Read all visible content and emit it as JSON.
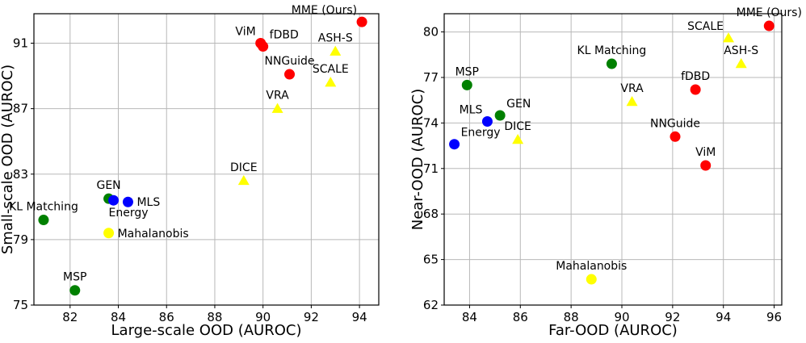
{
  "chart_data": [
    {
      "type": "scatter",
      "xlabel": "Large-scale OOD (AUROC)",
      "ylabel": "Small-scale OOD (AUROC)",
      "xlim": [
        80.5,
        94.8
      ],
      "ylim": [
        75,
        92.8
      ],
      "xticks": [
        "82",
        "84",
        "86",
        "88",
        "90",
        "92",
        "94"
      ],
      "yticks": [
        "75",
        "79",
        "83",
        "87",
        "91"
      ],
      "grid": true,
      "points": [
        {
          "label": "MME (Ours)",
          "x": 94.1,
          "y": 92.3,
          "marker": "circle",
          "color": "#ff0000",
          "label_pos": "above-left"
        },
        {
          "label": "ViM",
          "x": 89.9,
          "y": 91.0,
          "marker": "circle",
          "color": "#ff0000",
          "label_pos": "above-left"
        },
        {
          "label": "fDBD",
          "x": 90.0,
          "y": 90.8,
          "marker": "circle",
          "color": "#ff0000",
          "label_pos": "above-right"
        },
        {
          "label": "NNGuide",
          "x": 91.1,
          "y": 89.1,
          "marker": "circle",
          "color": "#ff0000",
          "label_pos": "above"
        },
        {
          "label": "ASH-S",
          "x": 93.0,
          "y": 90.5,
          "marker": "triangle",
          "color": "#ffff00",
          "label_pos": "above"
        },
        {
          "label": "SCALE",
          "x": 92.8,
          "y": 88.6,
          "marker": "triangle",
          "color": "#ffff00",
          "label_pos": "above"
        },
        {
          "label": "VRA",
          "x": 90.6,
          "y": 87.0,
          "marker": "triangle",
          "color": "#ffff00",
          "label_pos": "above"
        },
        {
          "label": "DICE",
          "x": 89.2,
          "y": 82.6,
          "marker": "triangle",
          "color": "#ffff00",
          "label_pos": "above"
        },
        {
          "label": "GEN",
          "x": 83.6,
          "y": 81.5,
          "marker": "circle",
          "color": "#008000",
          "label_pos": "above"
        },
        {
          "label": "Energy",
          "x": 83.8,
          "y": 81.4,
          "marker": "circle",
          "color": "#0000ff",
          "label_pos": "below-right"
        },
        {
          "label": "MLS",
          "x": 84.4,
          "y": 81.3,
          "marker": "circle",
          "color": "#0000ff",
          "label_pos": "right"
        },
        {
          "label": "KL Matching",
          "x": 80.9,
          "y": 80.2,
          "marker": "circle",
          "color": "#008000",
          "label_pos": "above"
        },
        {
          "label": "Mahalanobis",
          "x": 83.6,
          "y": 79.4,
          "marker": "circle",
          "color": "#ffff00",
          "label_pos": "right"
        },
        {
          "label": "MSP",
          "x": 82.2,
          "y": 75.9,
          "marker": "circle",
          "color": "#008000",
          "label_pos": "above"
        }
      ]
    },
    {
      "type": "scatter",
      "xlabel": "Far-OOD (AUROC)",
      "ylabel": "Near-OOD (AUROC)",
      "xlim": [
        83.0,
        96.3
      ],
      "ylim": [
        62,
        81.2
      ],
      "xticks": [
        "84",
        "86",
        "88",
        "90",
        "92",
        "94",
        "96"
      ],
      "yticks": [
        "62",
        "65",
        "68",
        "71",
        "74",
        "77",
        "80"
      ],
      "grid": true,
      "points": [
        {
          "label": "MME (Ours)",
          "x": 95.8,
          "y": 80.4,
          "marker": "circle",
          "color": "#ff0000",
          "label_pos": "above"
        },
        {
          "label": "SCALE",
          "x": 94.2,
          "y": 79.6,
          "marker": "triangle",
          "color": "#ffff00",
          "label_pos": "above-left"
        },
        {
          "label": "ASH-S",
          "x": 94.7,
          "y": 77.9,
          "marker": "triangle",
          "color": "#ffff00",
          "label_pos": "above"
        },
        {
          "label": "KL Matching",
          "x": 89.6,
          "y": 77.9,
          "marker": "circle",
          "color": "#008000",
          "label_pos": "above"
        },
        {
          "label": "MSP",
          "x": 83.9,
          "y": 76.5,
          "marker": "circle",
          "color": "#008000",
          "label_pos": "above"
        },
        {
          "label": "fDBD",
          "x": 92.9,
          "y": 76.2,
          "marker": "circle",
          "color": "#ff0000",
          "label_pos": "above"
        },
        {
          "label": "VRA",
          "x": 90.4,
          "y": 75.4,
          "marker": "triangle",
          "color": "#ffff00",
          "label_pos": "above"
        },
        {
          "label": "GEN",
          "x": 85.2,
          "y": 74.5,
          "marker": "circle",
          "color": "#008000",
          "label_pos": "above-right"
        },
        {
          "label": "MLS",
          "x": 84.7,
          "y": 74.1,
          "marker": "circle",
          "color": "#0000ff",
          "label_pos": "above-left"
        },
        {
          "label": "Energy",
          "x": 83.4,
          "y": 72.6,
          "marker": "circle",
          "color": "#0000ff",
          "label_pos": "above-right"
        },
        {
          "label": "DICE",
          "x": 85.9,
          "y": 72.9,
          "marker": "triangle",
          "color": "#ffff00",
          "label_pos": "above"
        },
        {
          "label": "NNGuide",
          "x": 92.1,
          "y": 73.1,
          "marker": "circle",
          "color": "#ff0000",
          "label_pos": "above"
        },
        {
          "label": "ViM",
          "x": 93.3,
          "y": 71.2,
          "marker": "circle",
          "color": "#ff0000",
          "label_pos": "above"
        },
        {
          "label": "Mahalanobis",
          "x": 88.8,
          "y": 63.7,
          "marker": "circle",
          "color": "#ffff00",
          "label_pos": "above"
        }
      ]
    }
  ]
}
